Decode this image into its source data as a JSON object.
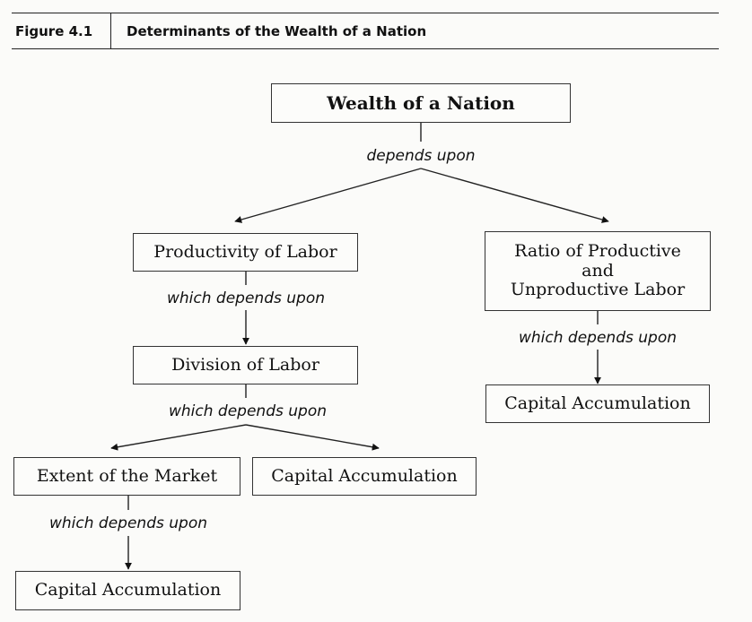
{
  "figure": {
    "number": "Figure 4.1",
    "title": "Determinants of the Wealth of a Nation"
  },
  "nodes": {
    "wealth": "Wealth of a Nation",
    "productivity": "Productivity of Labor",
    "ratio": [
      "Ratio of Productive",
      "and",
      "Unproductive Labor"
    ],
    "capital_ratio": "Capital Accumulation",
    "division": "Division of Labor",
    "extent": "Extent of the Market",
    "capital_division": "Capital Accumulation",
    "capital_extent": "Capital Accumulation"
  },
  "edge_labels": {
    "root": "depends upon",
    "productivity": "which depends upon",
    "ratio": "which depends upon",
    "division": "which depends upon",
    "extent": "which depends upon"
  }
}
